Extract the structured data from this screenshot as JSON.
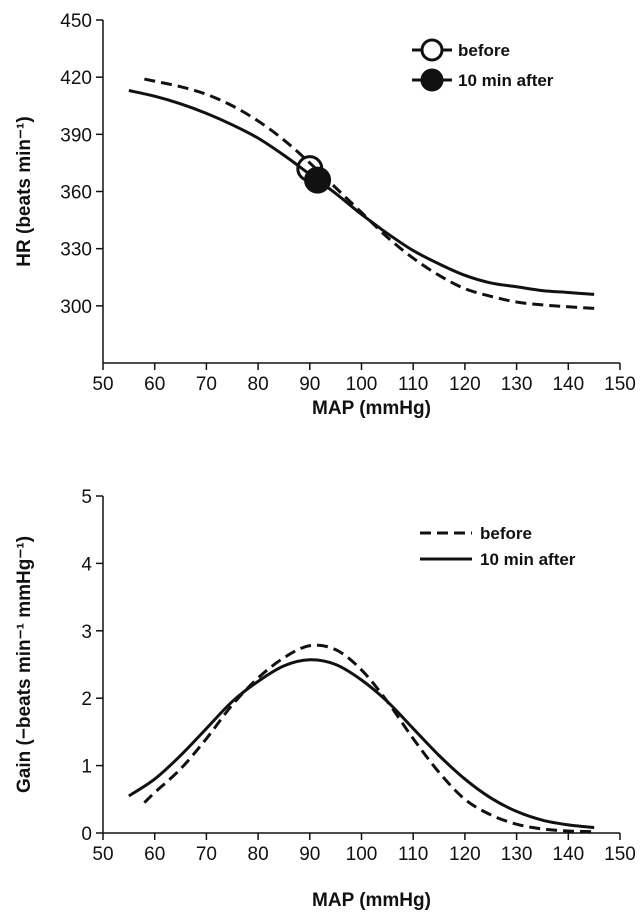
{
  "colors": {
    "ink": "#111111",
    "background": "#ffffff"
  },
  "chart_data": [
    {
      "type": "line",
      "xlabel": "MAP (mmHg)",
      "ylabel": "HR (beats min⁻¹)",
      "xlim": [
        50,
        150
      ],
      "ylim": [
        270,
        450
      ],
      "xticks": [
        50,
        60,
        70,
        80,
        90,
        100,
        110,
        120,
        130,
        140,
        150
      ],
      "yticks": [
        300,
        330,
        360,
        390,
        420,
        450
      ],
      "grid": false,
      "legend_position": "top-right",
      "series": [
        {
          "name": "before",
          "line_style": "dashed",
          "x": [
            58,
            65,
            70,
            75,
            80,
            85,
            90,
            95,
            100,
            105,
            110,
            115,
            120,
            125,
            130,
            135,
            140,
            146
          ],
          "y": [
            419,
            415,
            411,
            405,
            397,
            387,
            375,
            362,
            349,
            336,
            325,
            316,
            309,
            305,
            302,
            300.5,
            299.5,
            298.5
          ]
        },
        {
          "name": "10 min after",
          "line_style": "solid",
          "x": [
            55,
            60,
            65,
            70,
            75,
            80,
            85,
            90,
            95,
            100,
            105,
            110,
            115,
            120,
            125,
            130,
            135,
            140,
            145
          ],
          "y": [
            413,
            410,
            406,
            401,
            395,
            388,
            379,
            369,
            359,
            348,
            338,
            329,
            322,
            316,
            312,
            310,
            308,
            307,
            306
          ]
        }
      ],
      "points": [
        {
          "series": "before",
          "marker": "open-circle",
          "x": 90,
          "y": 372
        },
        {
          "series": "10 min after",
          "marker": "filled-circle",
          "x": 91.5,
          "y": 366
        }
      ]
    },
    {
      "type": "line",
      "xlabel": "MAP (mmHg)",
      "ylabel": "Gain (−beats min⁻¹ mmHg⁻¹)",
      "xlim": [
        50,
        150
      ],
      "ylim": [
        0,
        5
      ],
      "xticks": [
        50,
        60,
        70,
        80,
        90,
        100,
        110,
        120,
        130,
        140,
        150
      ],
      "yticks": [
        0,
        1,
        2,
        3,
        4,
        5
      ],
      "grid": false,
      "legend_position": "top-right",
      "series": [
        {
          "name": "before",
          "line_style": "dashed",
          "x": [
            58,
            60,
            65,
            70,
            75,
            80,
            85,
            90,
            95,
            100,
            105,
            110,
            115,
            120,
            125,
            130,
            135,
            140,
            145
          ],
          "y": [
            0.45,
            0.6,
            0.95,
            1.4,
            1.9,
            2.3,
            2.6,
            2.78,
            2.72,
            2.42,
            1.95,
            1.4,
            0.9,
            0.5,
            0.27,
            0.13,
            0.06,
            0.03,
            0.02
          ]
        },
        {
          "name": "10 min after",
          "line_style": "solid",
          "x": [
            55,
            60,
            65,
            70,
            75,
            80,
            85,
            90,
            95,
            100,
            105,
            110,
            115,
            120,
            125,
            130,
            135,
            140,
            145
          ],
          "y": [
            0.55,
            0.8,
            1.15,
            1.55,
            1.95,
            2.25,
            2.48,
            2.57,
            2.5,
            2.27,
            1.95,
            1.55,
            1.15,
            0.8,
            0.52,
            0.32,
            0.19,
            0.12,
            0.08
          ]
        }
      ]
    }
  ]
}
